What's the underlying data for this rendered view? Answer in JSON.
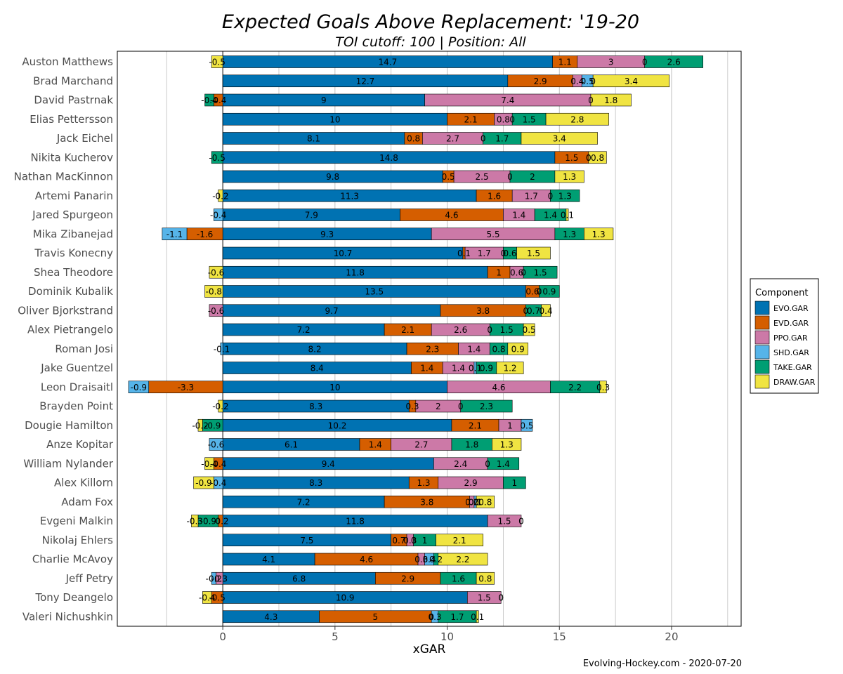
{
  "chart_data": {
    "type": "bar",
    "orientation": "horizontal",
    "stacked": true,
    "title": "Expected Goals Above Replacement: '19-20",
    "subtitle": "TOI cutoff: 100 | Position: All",
    "xlabel": "xGAR",
    "caption": "Evolving-Hockey.com - 2020-07-20",
    "xlim": [
      -4.7,
      23.1
    ],
    "xticks": [
      0,
      5,
      10,
      15,
      20
    ],
    "grid": true,
    "legend": {
      "title": "Component",
      "position": "right"
    },
    "components": [
      {
        "name": "EVO.GAR",
        "color": "#0072B2"
      },
      {
        "name": "EVD.GAR",
        "color": "#D55E00"
      },
      {
        "name": "PPO.GAR",
        "color": "#CC79A7"
      },
      {
        "name": "SHD.GAR",
        "color": "#56B4E9"
      },
      {
        "name": "TAKE.GAR",
        "color": "#009E73"
      },
      {
        "name": "DRAW.GAR",
        "color": "#F0E442"
      }
    ],
    "players": [
      {
        "name": "Auston Matthews",
        "values": [
          14.7,
          1.1,
          3,
          0,
          2.6,
          -0.5
        ]
      },
      {
        "name": "Brad Marchand",
        "values": [
          12.7,
          2.9,
          0.4,
          0.5,
          0,
          3.4
        ]
      },
      {
        "name": "David Pastrnak",
        "values": [
          9,
          -0.4,
          7.4,
          0,
          -0.4,
          1.8
        ]
      },
      {
        "name": "Elias Pettersson",
        "values": [
          10,
          2.1,
          0.8,
          0,
          1.5,
          2.8
        ]
      },
      {
        "name": "Jack Eichel",
        "values": [
          8.1,
          0.8,
          2.7,
          0,
          1.7,
          3.4
        ]
      },
      {
        "name": "Nikita Kucherov",
        "values": [
          14.8,
          1.5,
          0,
          0,
          -0.5,
          0.8
        ]
      },
      {
        "name": "Nathan MacKinnon",
        "values": [
          9.8,
          0.5,
          2.5,
          0,
          2,
          1.3
        ]
      },
      {
        "name": "Artemi Panarin",
        "values": [
          11.3,
          1.6,
          1.7,
          0,
          1.3,
          -0.2
        ]
      },
      {
        "name": "Jared Spurgeon",
        "values": [
          7.9,
          4.6,
          1.4,
          -0.4,
          1.4,
          0.1
        ]
      },
      {
        "name": "Mika Zibanejad",
        "values": [
          9.3,
          -1.6,
          5.5,
          -1.1,
          1.3,
          1.3
        ]
      },
      {
        "name": "Travis Konecny",
        "values": [
          10.7,
          0.1,
          1.7,
          0,
          0.6,
          1.5
        ]
      },
      {
        "name": "Shea Theodore",
        "values": [
          11.8,
          1,
          0.6,
          0,
          1.5,
          -0.6
        ]
      },
      {
        "name": "Dominik Kubalik",
        "values": [
          13.5,
          0.6,
          0,
          0,
          0.9,
          -0.8
        ]
      },
      {
        "name": "Oliver Bjorkstrand",
        "values": [
          9.7,
          3.8,
          -0.6,
          0,
          0.7,
          0.4
        ]
      },
      {
        "name": "Alex Pietrangelo",
        "values": [
          7.2,
          2.1,
          2.6,
          0,
          1.5,
          0.5
        ]
      },
      {
        "name": "Roman Josi",
        "values": [
          8.2,
          2.3,
          1.4,
          -0.1,
          0.8,
          0.9
        ]
      },
      {
        "name": "Jake Guentzel",
        "values": [
          8.4,
          1.4,
          1.4,
          0.1,
          0.9,
          1.2
        ]
      },
      {
        "name": "Leon Draisaitl",
        "values": [
          10,
          -3.3,
          4.6,
          -0.9,
          2.2,
          0.3
        ]
      },
      {
        "name": "Brayden Point",
        "values": [
          8.3,
          0.3,
          2,
          0,
          2.3,
          -0.2
        ]
      },
      {
        "name": "Dougie Hamilton",
        "values": [
          10.2,
          2.1,
          1,
          0.5,
          -0.9,
          -0.2
        ]
      },
      {
        "name": "Anze Kopitar",
        "values": [
          6.1,
          1.4,
          2.7,
          -0.6,
          1.8,
          1.3
        ]
      },
      {
        "name": "William Nylander",
        "values": [
          9.4,
          -0.4,
          2.4,
          0,
          1.4,
          -0.4
        ]
      },
      {
        "name": "Alex Killorn",
        "values": [
          8.3,
          1.3,
          2.9,
          -0.4,
          1,
          -0.9
        ]
      },
      {
        "name": "Adam Fox",
        "values": [
          7.2,
          3.8,
          0.2,
          0.1,
          0,
          0.8
        ]
      },
      {
        "name": "Evgeni Malkin",
        "values": [
          11.8,
          -0.2,
          1.5,
          0,
          -0.9,
          -0.3
        ]
      },
      {
        "name": "Nikolaj Ehlers",
        "values": [
          7.5,
          0.7,
          0.3,
          0,
          1,
          2.1
        ]
      },
      {
        "name": "Charlie McAvoy",
        "values": [
          4.1,
          4.6,
          0.3,
          0.4,
          0.2,
          2.2
        ]
      },
      {
        "name": "Jeff Petry",
        "values": [
          6.8,
          2.9,
          -0.3,
          -0.2,
          1.6,
          0.8
        ]
      },
      {
        "name": "Tony Deangelo",
        "values": [
          10.9,
          -0.5,
          1.5,
          0,
          0,
          -0.4
        ]
      },
      {
        "name": "Valeri Nichushkin",
        "values": [
          4.3,
          5,
          0,
          0.3,
          1.7,
          0.1
        ]
      }
    ]
  }
}
